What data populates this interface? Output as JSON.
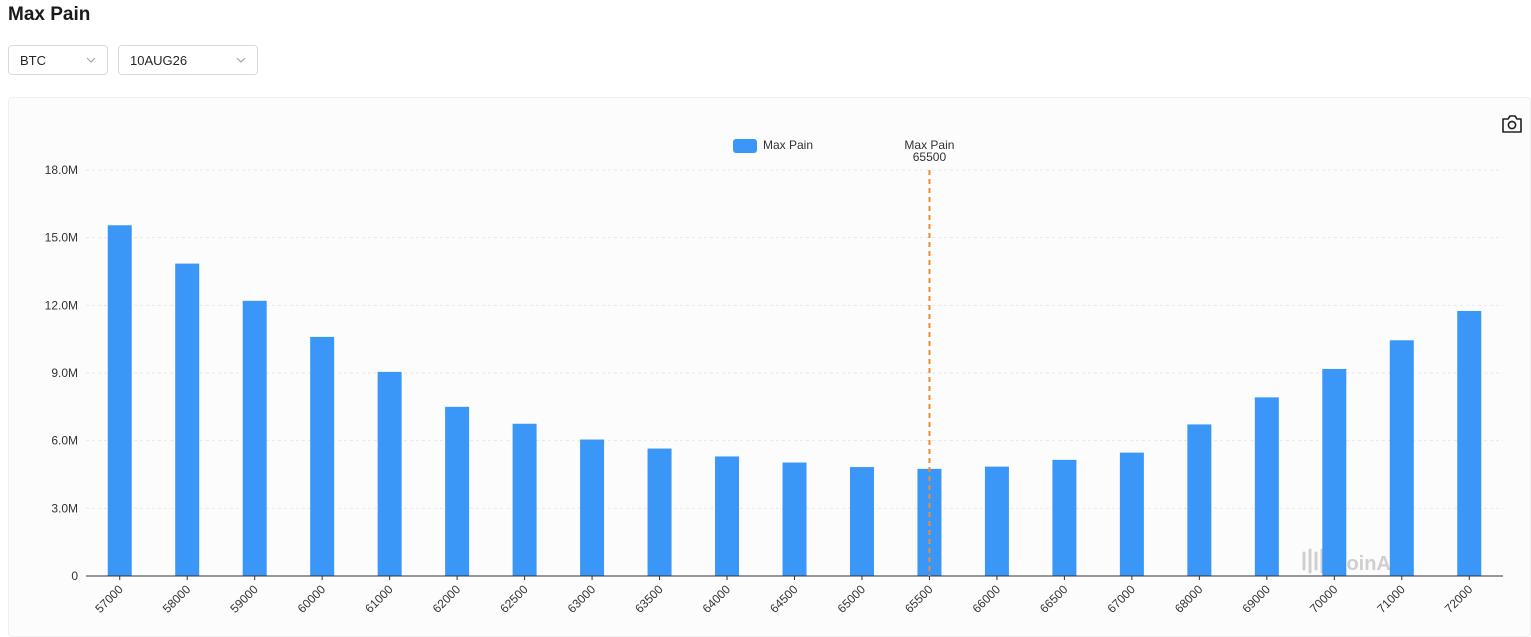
{
  "page": {
    "title": "Max Pain"
  },
  "filters": {
    "symbol": {
      "value": "BTC"
    },
    "expiry": {
      "value": "10AUG26"
    }
  },
  "toolbar": {
    "icons": [
      "camera-icon"
    ]
  },
  "colors": {
    "bar": "#3a97f7",
    "marker_line": "#f08a2c",
    "axis": "#333333",
    "grid": "#e8e8e8",
    "watermark": "#cfcfcf"
  },
  "watermark": {
    "text": "CoinAnk"
  },
  "chart_data": {
    "type": "bar",
    "title": "",
    "xlabel": "",
    "ylabel": "",
    "categories": [
      "57000",
      "58000",
      "59000",
      "60000",
      "61000",
      "62000",
      "62500",
      "63000",
      "63500",
      "64000",
      "64500",
      "65000",
      "65500",
      "66000",
      "66500",
      "67000",
      "68000",
      "69000",
      "70000",
      "71000",
      "72000"
    ],
    "series": [
      {
        "name": "Max Pain",
        "values": [
          15.55,
          13.85,
          12.2,
          10.6,
          9.05,
          7.5,
          6.75,
          6.05,
          5.65,
          5.3,
          5.03,
          4.83,
          4.75,
          4.85,
          5.15,
          5.47,
          6.72,
          7.92,
          9.18,
          10.45,
          11.75
        ]
      }
    ],
    "y_unit_suffix": "M",
    "ylim": [
      0,
      18
    ],
    "y_ticks": [
      "0",
      "3.0M",
      "6.0M",
      "9.0M",
      "12.0M",
      "15.0M",
      "18.0M"
    ],
    "grid": true,
    "legend": {
      "position": "top-center",
      "entries": [
        "Max Pain"
      ]
    },
    "marker": {
      "category": "65500",
      "label_title": "Max Pain",
      "label_value": "65500",
      "style": "dashed"
    }
  }
}
